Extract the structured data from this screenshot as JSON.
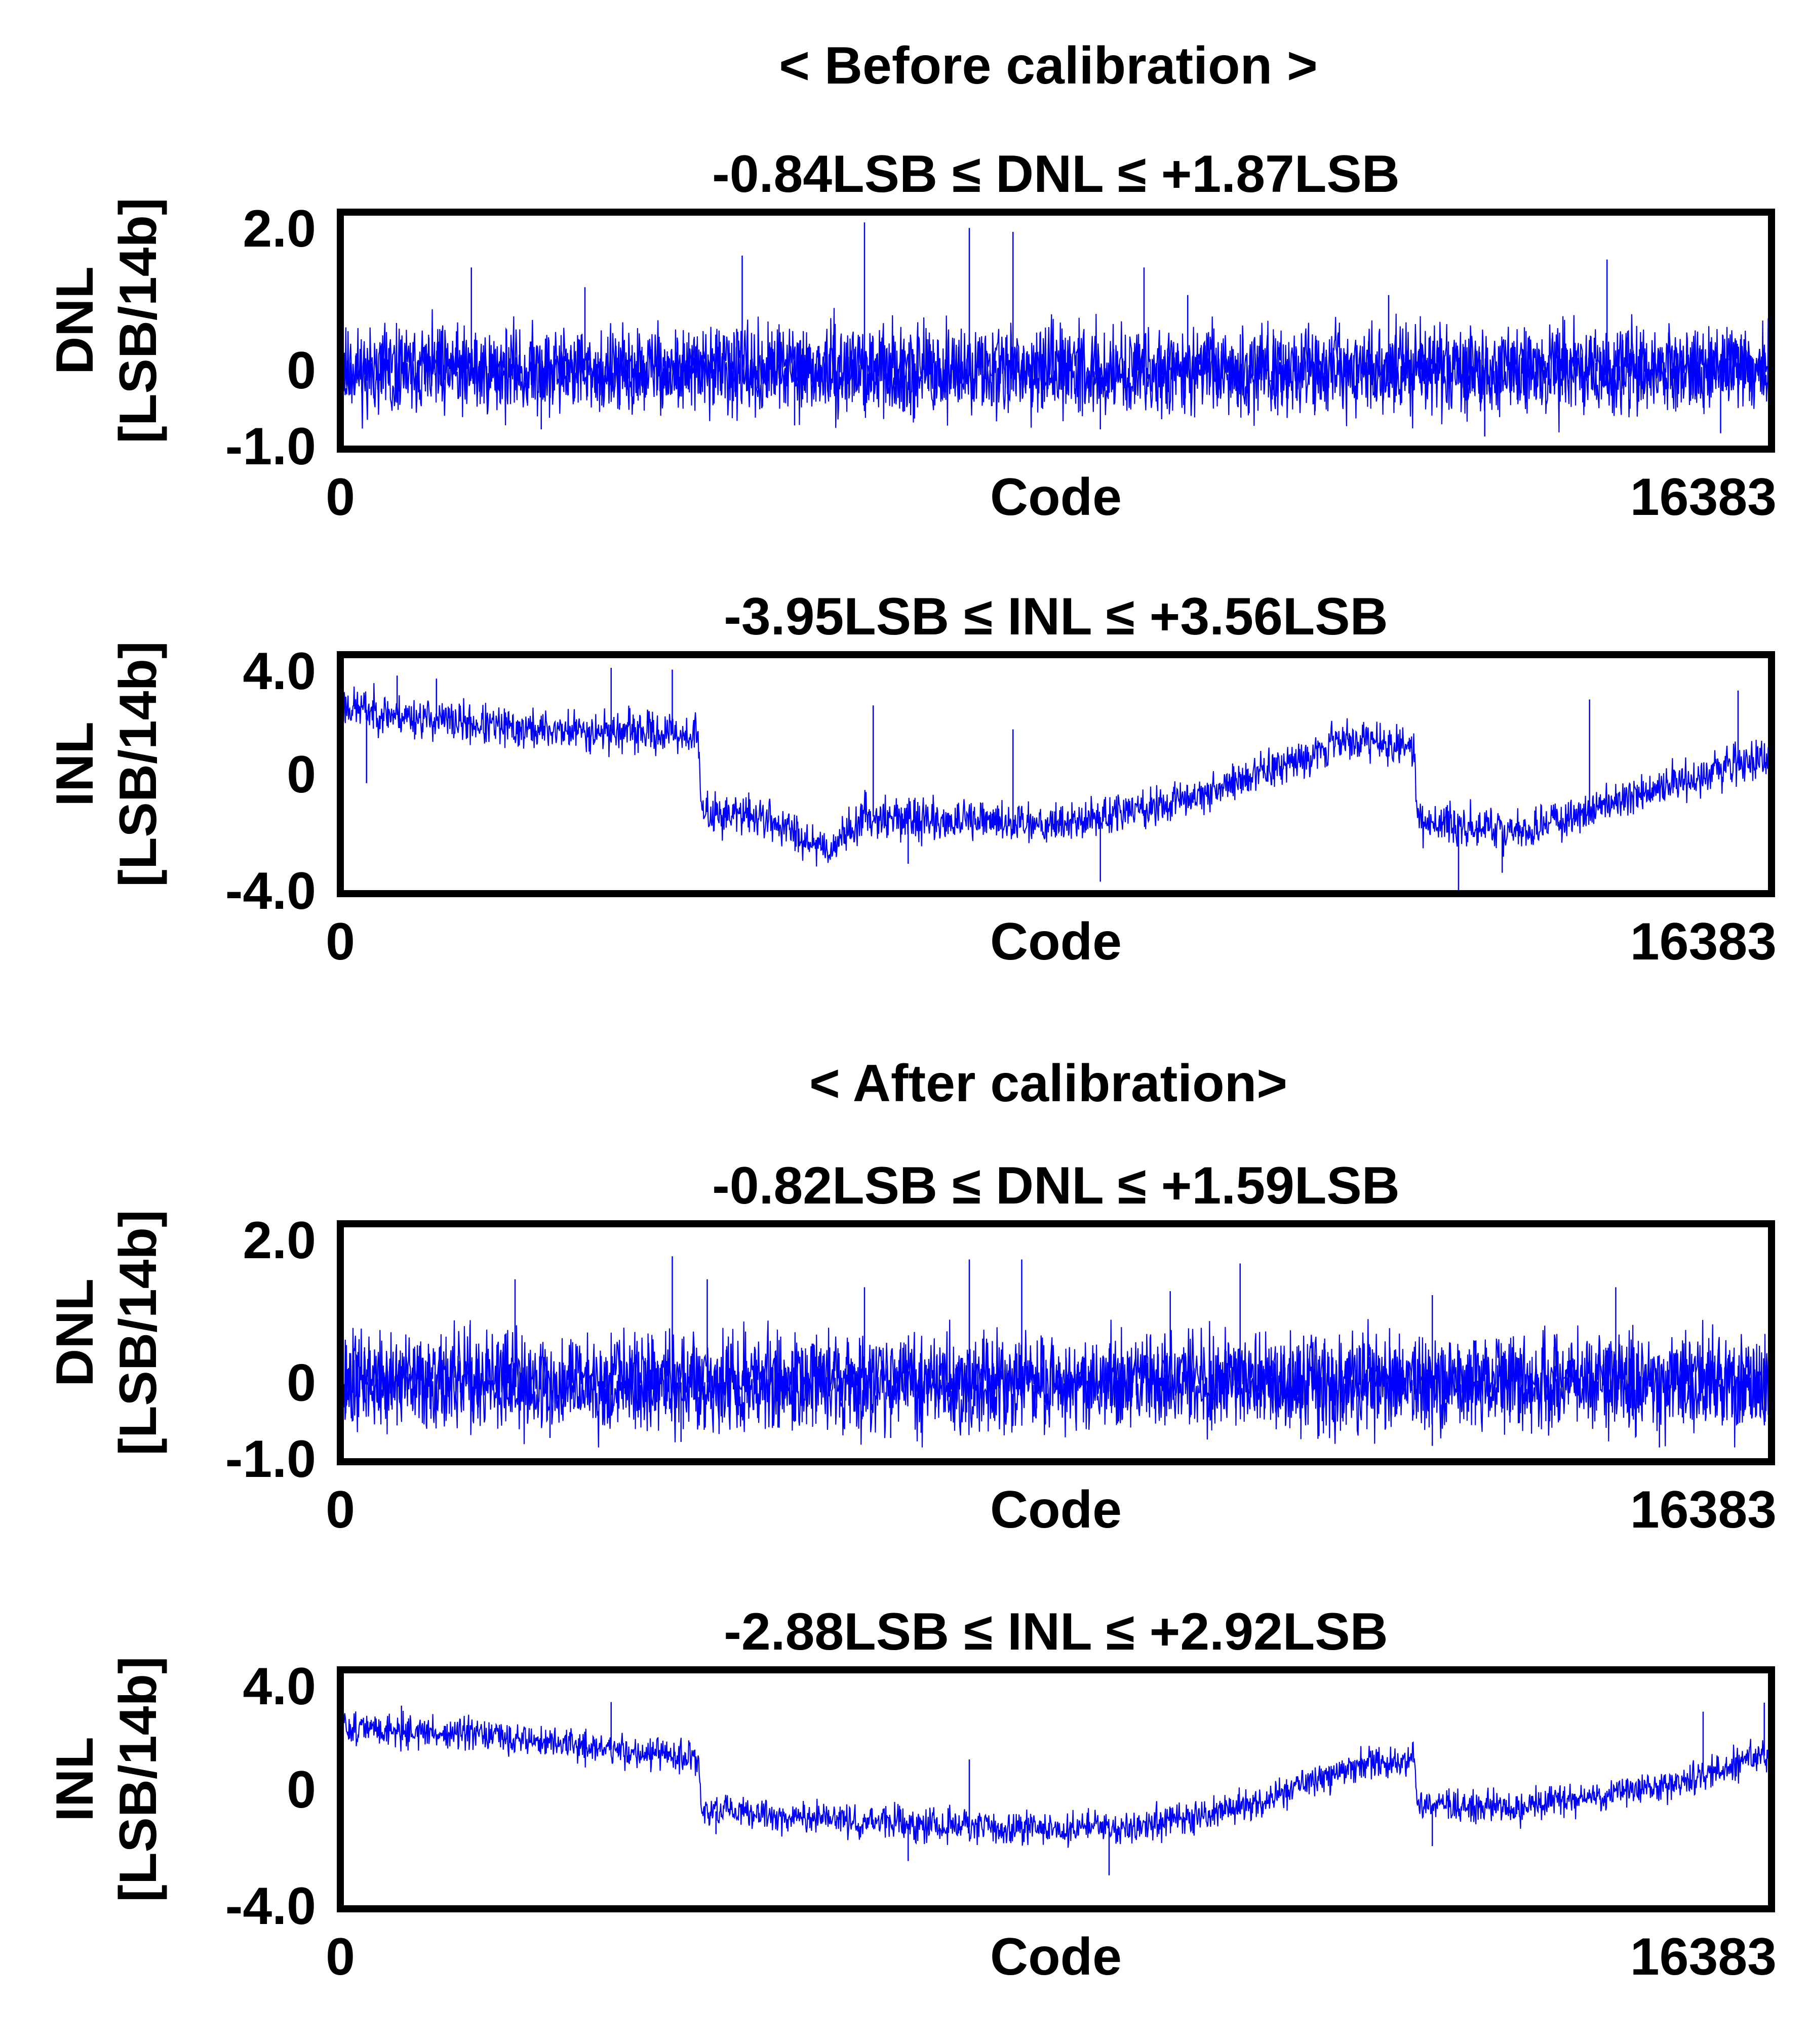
{
  "sections": [
    {
      "heading": "< Before calibration >"
    },
    {
      "heading": "< After calibration>"
    }
  ],
  "chart_data": [
    {
      "type": "line",
      "title": "-0.84LSB ≤ DNL ≤ +1.87LSB",
      "xlabel": "Code",
      "ylabel_line1": "DNL",
      "ylabel_line2": "[LSB/14b]",
      "xlim": [
        0,
        16383
      ],
      "ylim": [
        -1.0,
        2.0
      ],
      "xticks": [
        "0",
        "16383"
      ],
      "yticks": [
        "2.0",
        "0",
        "-1.0"
      ],
      "ytick_values": [
        2.0,
        0,
        -1.0
      ],
      "color": "#0000ff",
      "series": [
        {
          "kind": "noise",
          "baseline": [
            [
              0,
              0.0
            ],
            [
              16383,
              0.0
            ]
          ],
          "noise": 0.4,
          "min": -0.84,
          "max": 1.87,
          "seed": 11,
          "spikes": [
            [
              1500,
              1.3
            ],
            [
              4600,
              1.45
            ],
            [
              6000,
              1.87
            ],
            [
              7200,
              1.8
            ],
            [
              7700,
              1.75
            ],
            [
              9200,
              1.3
            ],
            [
              14500,
              1.4
            ],
            [
              12000,
              0.95
            ],
            [
              2800,
              1.05
            ],
            [
              9700,
              0.95
            ]
          ],
          "dips": [
            [
              2300,
              -0.75
            ],
            [
              8700,
              -0.75
            ],
            [
              13100,
              -0.84
            ],
            [
              15800,
              -0.8
            ],
            [
              5200,
              -0.7
            ]
          ]
        }
      ]
    },
    {
      "type": "line",
      "title": "-3.95LSB ≤ INL ≤ +3.56LSB",
      "xlabel": "Code",
      "ylabel_line1": "INL",
      "ylabel_line2": "[LSB/14b]",
      "xlim": [
        0,
        16383
      ],
      "ylim": [
        -4.0,
        4.0
      ],
      "xticks": [
        "0",
        "16383"
      ],
      "yticks": [
        "4.0",
        "0",
        "-4.0"
      ],
      "ytick_values": [
        4.0,
        0,
        -4.0
      ],
      "color": "#0000ff",
      "series": [
        {
          "kind": "noise",
          "baseline": [
            [
              0,
              2.3
            ],
            [
              600,
              2.0
            ],
            [
              2000,
              1.5
            ],
            [
              3500,
              1.4
            ],
            [
              4100,
              1.3
            ],
            [
              4130,
              -1.3
            ],
            [
              4800,
              -1.4
            ],
            [
              5600,
              -2.5
            ],
            [
              6000,
              -1.4
            ],
            [
              7000,
              -1.6
            ],
            [
              8400,
              -1.6
            ],
            [
              9500,
              -1.0
            ],
            [
              10500,
              0.0
            ],
            [
              11500,
              1.2
            ],
            [
              12000,
              1.0
            ],
            [
              12300,
              0.8
            ],
            [
              12330,
              -1.5
            ],
            [
              13500,
              -2.0
            ],
            [
              15000,
              -0.5
            ],
            [
              16383,
              0.7
            ]
          ],
          "noise": 0.5,
          "min": -3.95,
          "max": 3.56,
          "seed": 23,
          "spikes": [
            [
              650,
              3.3
            ],
            [
              1100,
              3.2
            ],
            [
              3100,
              3.56
            ],
            [
              3800,
              3.5
            ],
            [
              6100,
              2.3
            ],
            [
              7700,
              1.5
            ],
            [
              14300,
              2.5
            ],
            [
              16000,
              2.8
            ]
          ],
          "dips": [
            [
              12800,
              -3.95
            ],
            [
              8700,
              -3.6
            ],
            [
              6500,
              -3.0
            ],
            [
              13300,
              -3.3
            ],
            [
              300,
              -0.3
            ]
          ]
        }
      ]
    },
    {
      "type": "line",
      "title": "-0.82LSB ≤ DNL ≤ +1.59LSB",
      "xlabel": "Code",
      "ylabel_line1": "DNL",
      "ylabel_line2": "[LSB/14b]",
      "xlim": [
        0,
        16383
      ],
      "ylim": [
        -1.0,
        2.0
      ],
      "xticks": [
        "0",
        "16383"
      ],
      "yticks": [
        "2.0",
        "0",
        "-1.0"
      ],
      "ytick_values": [
        2.0,
        0,
        -1.0
      ],
      "color": "#0000ff",
      "series": [
        {
          "kind": "noise",
          "baseline": [
            [
              0,
              0.0
            ],
            [
              16383,
              0.0
            ]
          ],
          "noise": 0.45,
          "min": -0.82,
          "max": 1.59,
          "seed": 37,
          "spikes": [
            [
              3800,
              1.59
            ],
            [
              4200,
              1.3
            ],
            [
              7200,
              1.55
            ],
            [
              7800,
              1.55
            ],
            [
              10300,
              1.5
            ],
            [
              2000,
              1.3
            ],
            [
              12500,
              1.1
            ],
            [
              14600,
              1.2
            ],
            [
              6000,
              1.2
            ],
            [
              9500,
              1.15
            ]
          ],
          "dips": [
            [
              2400,
              -0.7
            ],
            [
              3900,
              -0.75
            ],
            [
              12500,
              -0.8
            ],
            [
              15100,
              -0.82
            ],
            [
              6300,
              -0.7
            ]
          ]
        }
      ]
    },
    {
      "type": "line",
      "title": "-2.88LSB ≤ INL ≤ +2.92LSB",
      "xlabel": "Code",
      "ylabel_line1": "INL",
      "ylabel_line2": "[LSB/14b]",
      "xlim": [
        0,
        16383
      ],
      "ylim": [
        -4.0,
        4.0
      ],
      "xticks": [
        "0",
        "16383"
      ],
      "yticks": [
        "4.0",
        "0",
        "-4.0"
      ],
      "ytick_values": [
        4.0,
        0,
        -4.0
      ],
      "color": "#0000ff",
      "series": [
        {
          "kind": "noise",
          "baseline": [
            [
              0,
              2.1
            ],
            [
              2000,
              1.7
            ],
            [
              4100,
              1.0
            ],
            [
              4130,
              -0.7
            ],
            [
              5500,
              -1.0
            ],
            [
              7500,
              -1.3
            ],
            [
              9000,
              -1.3
            ],
            [
              10500,
              -0.5
            ],
            [
              11500,
              0.7
            ],
            [
              12300,
              1.0
            ],
            [
              12330,
              -0.5
            ],
            [
              13500,
              -0.6
            ],
            [
              15000,
              0.0
            ],
            [
              16383,
              1.2
            ]
          ],
          "noise": 0.4,
          "min": -2.88,
          "max": 2.92,
          "seed": 51,
          "spikes": [
            [
              700,
              2.8
            ],
            [
              3100,
              2.92
            ],
            [
              15600,
              2.6
            ],
            [
              16300,
              2.9
            ],
            [
              7200,
              1.0
            ]
          ],
          "dips": [
            [
              8800,
              -2.88
            ],
            [
              6500,
              -2.4
            ],
            [
              12500,
              -1.9
            ],
            [
              4300,
              -1.5
            ]
          ]
        }
      ]
    }
  ]
}
